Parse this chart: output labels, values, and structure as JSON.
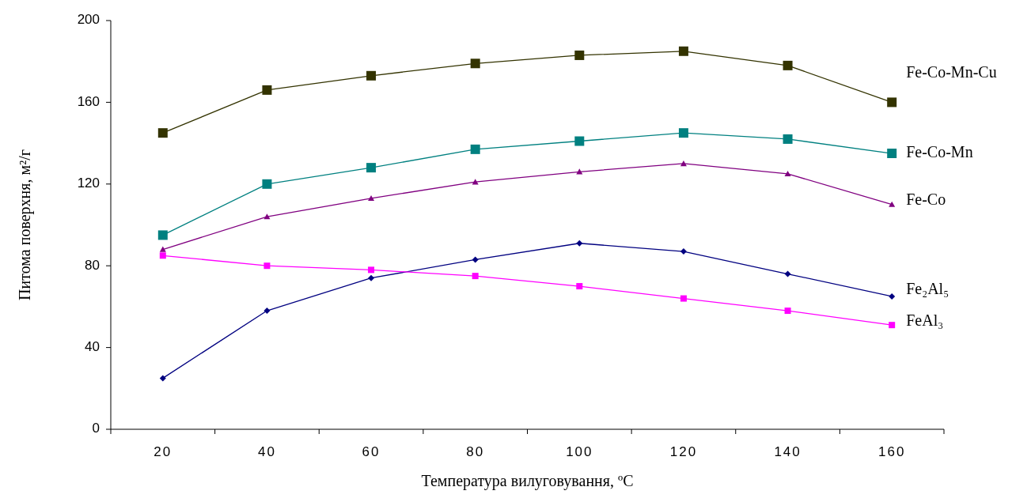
{
  "chart_data": {
    "type": "line",
    "xlabel": "Температура вилуговування, ºC",
    "ylabel": "Питома поверхня, м²/г",
    "categories": [
      "20",
      "40",
      "60",
      "80",
      "100",
      "120",
      "140",
      "160"
    ],
    "ylim": [
      0,
      200
    ],
    "yticks": [
      0,
      40,
      80,
      120,
      160,
      200
    ],
    "grid": false,
    "series": [
      {
        "name": "Fe-Co-Mn-Cu",
        "color": "#333300",
        "marker": "square",
        "values": [
          145,
          166,
          173,
          179,
          183,
          185,
          178,
          160
        ]
      },
      {
        "name": "Fe-Co-Mn",
        "color": "#008080",
        "marker": "square",
        "values": [
          95,
          120,
          128,
          137,
          141,
          145,
          142,
          135
        ]
      },
      {
        "name": "Fe-Co",
        "color": "#800080",
        "marker": "triangle",
        "values": [
          88,
          104,
          113,
          121,
          126,
          130,
          125,
          110
        ]
      },
      {
        "name": "Fe₂Al₅",
        "color": "#000080",
        "marker": "diamond",
        "values": [
          25,
          58,
          74,
          83,
          91,
          87,
          76,
          65
        ]
      },
      {
        "name": "FeAl₃",
        "color": "#ff00ff",
        "marker": "square",
        "values": [
          85,
          80,
          78,
          75,
          70,
          64,
          58,
          51
        ]
      }
    ]
  }
}
